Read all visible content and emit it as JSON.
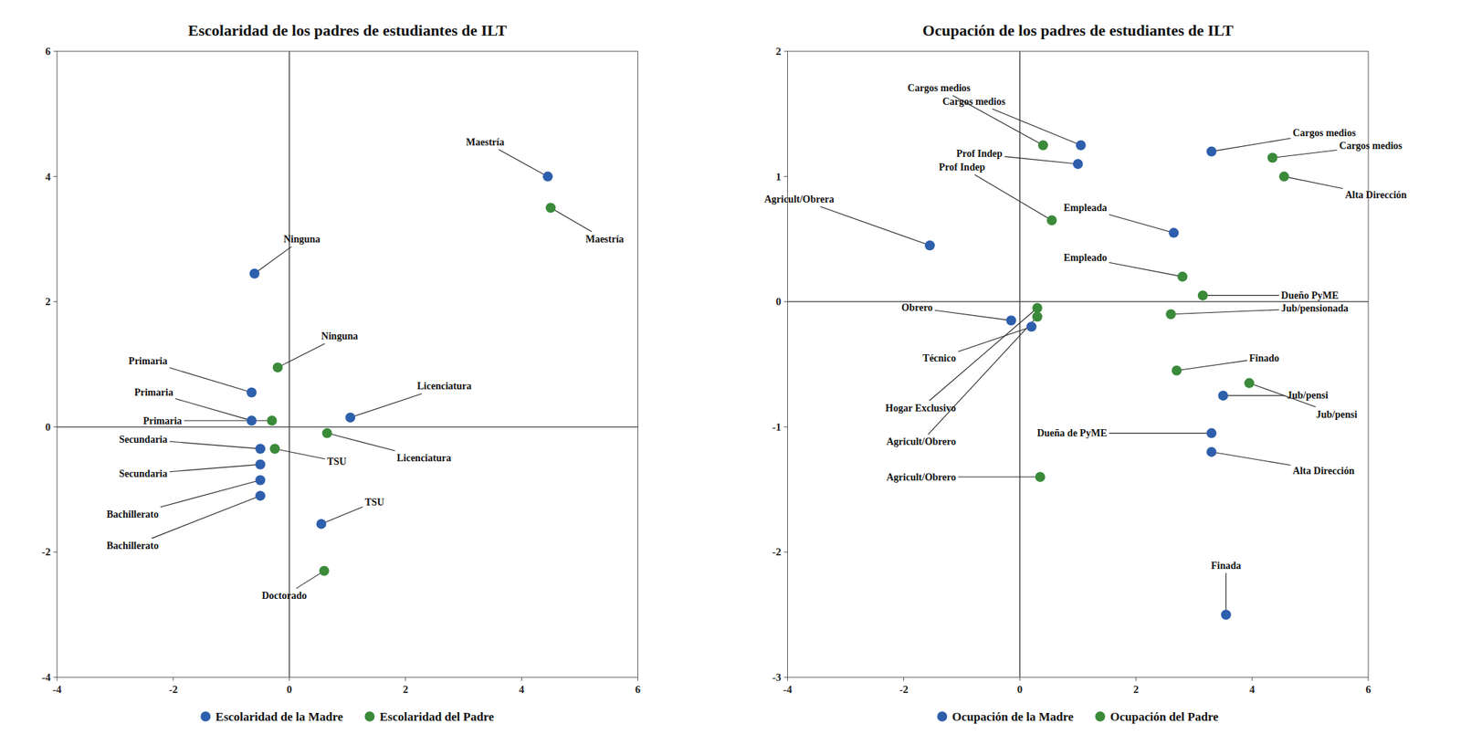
{
  "chart_data": [
    {
      "type": "scatter",
      "title": "Escolaridad de los padres de estudiantes de ILT",
      "xlim": [
        -4,
        6
      ],
      "ylim": [
        -4,
        6
      ],
      "xticks": [
        -4,
        -2,
        0,
        2,
        4,
        6
      ],
      "yticks": [
        -4,
        -2,
        0,
        2,
        4,
        6
      ],
      "grid": false,
      "legend": "bottom",
      "series": [
        {
          "name": "Escolaridad de la Madre",
          "color": "#2E5FAC",
          "marker": "circle",
          "x": [
            -0.6,
            -0.65,
            -0.65,
            1.05,
            -0.5,
            4.45,
            -0.5,
            -0.5,
            -0.5,
            0.55
          ],
          "values": [
            2.45,
            0.55,
            0.1,
            0.15,
            -0.35,
            4.0,
            -0.6,
            -0.85,
            -1.1,
            -1.55
          ],
          "labels": [
            "Ninguna",
            "Primaria",
            "Primaria",
            "Licenciatura",
            "Secundaria",
            "Maestría",
            "Secundaria",
            "Bachillerato",
            "Bachillerato",
            "TSU"
          ],
          "label_x": [
            -0.1,
            -2.1,
            -2.0,
            2.2,
            -2.1,
            3.7,
            -2.1,
            -2.25,
            -2.25,
            1.3
          ],
          "label_y": [
            3.0,
            1.05,
            0.55,
            0.65,
            -0.2,
            4.55,
            -0.75,
            -1.4,
            -1.9,
            -1.2
          ]
        },
        {
          "name": "Escolaridad del Padre",
          "color": "#3A8A3A",
          "marker": "circle",
          "x": [
            -0.2,
            -0.3,
            0.65,
            4.5,
            -0.25,
            0.6
          ],
          "values": [
            0.95,
            0.1,
            -0.1,
            3.5,
            -0.35,
            -2.3
          ],
          "labels": [
            "Ninguna",
            "Primaria",
            "Licenciatura",
            "Maestría",
            "TSU",
            "Doctorado"
          ],
          "label_x": [
            0.55,
            -1.85,
            1.85,
            5.1,
            0.65,
            0.3
          ],
          "label_y": [
            1.45,
            0.1,
            -0.5,
            3.0,
            -0.55,
            -2.7
          ]
        }
      ]
    },
    {
      "type": "scatter",
      "title": "Ocupación de los padres de estudiantes de ILT",
      "xlim": [
        -4,
        6
      ],
      "ylim": [
        -3,
        2
      ],
      "xticks": [
        -4,
        -2,
        0,
        2,
        4,
        6
      ],
      "yticks": [
        -3,
        -2,
        -1,
        0,
        1,
        2
      ],
      "grid": false,
      "legend": "bottom",
      "series": [
        {
          "name": "Ocupación de la Madre",
          "color": "#2E5FAC",
          "marker": "circle",
          "x": [
            -1.55,
            1.0,
            1.05,
            2.65,
            -0.15,
            0.2,
            3.3,
            3.5,
            3.3,
            3.3,
            3.55
          ],
          "values": [
            0.45,
            1.1,
            1.25,
            0.55,
            -0.15,
            -0.2,
            -1.05,
            -0.75,
            -1.2,
            1.2,
            -2.5
          ],
          "labels": [
            "Agricult/Obrera",
            "Prof Indep",
            "Cargos medios",
            "Empleada",
            "Obrero",
            "Técnico",
            "Dueña de PyME",
            "Jub/pensi",
            "Alta Dirección",
            "Cargos medios",
            "Finada"
          ],
          "label_x": [
            -3.2,
            -0.3,
            -0.25,
            1.5,
            -1.5,
            -1.1,
            1.5,
            4.6,
            4.7,
            4.7,
            3.55
          ],
          "label_y": [
            0.82,
            1.18,
            1.6,
            0.75,
            -0.05,
            -0.45,
            -1.05,
            -0.75,
            -1.35,
            1.35,
            -2.15
          ]
        },
        {
          "name": "Ocupación del Padre",
          "color": "#3A8A3A",
          "marker": "circle",
          "x": [
            0.55,
            0.4,
            0.3,
            0.3,
            0.35,
            2.8,
            3.15,
            2.6,
            2.7,
            3.95,
            4.35,
            4.55
          ],
          "values": [
            0.65,
            1.25,
            -0.05,
            -0.12,
            -1.4,
            0.2,
            0.05,
            -0.1,
            -0.55,
            -0.65,
            1.15,
            1.0
          ],
          "labels": [
            "Prof Indep",
            "Cargos medios",
            "Hogar Exclusivo",
            "Agricult/Obrero",
            "Agricult/Obrero",
            "Empleado",
            "Dueño PyME",
            "Jub/pensionada",
            "Finado",
            "Jub/pensi",
            "Cargos medios",
            "Alta Dirección"
          ],
          "label_x": [
            -0.6,
            -0.85,
            -1.1,
            -1.1,
            -1.1,
            1.5,
            4.5,
            4.5,
            3.95,
            5.1,
            5.5,
            5.6
          ],
          "label_y": [
            1.12,
            1.65,
            -0.85,
            -1.12,
            -1.4,
            0.35,
            0.05,
            0.05,
            -0.45,
            -0.9,
            1.3,
            0.85
          ]
        }
      ]
    }
  ]
}
